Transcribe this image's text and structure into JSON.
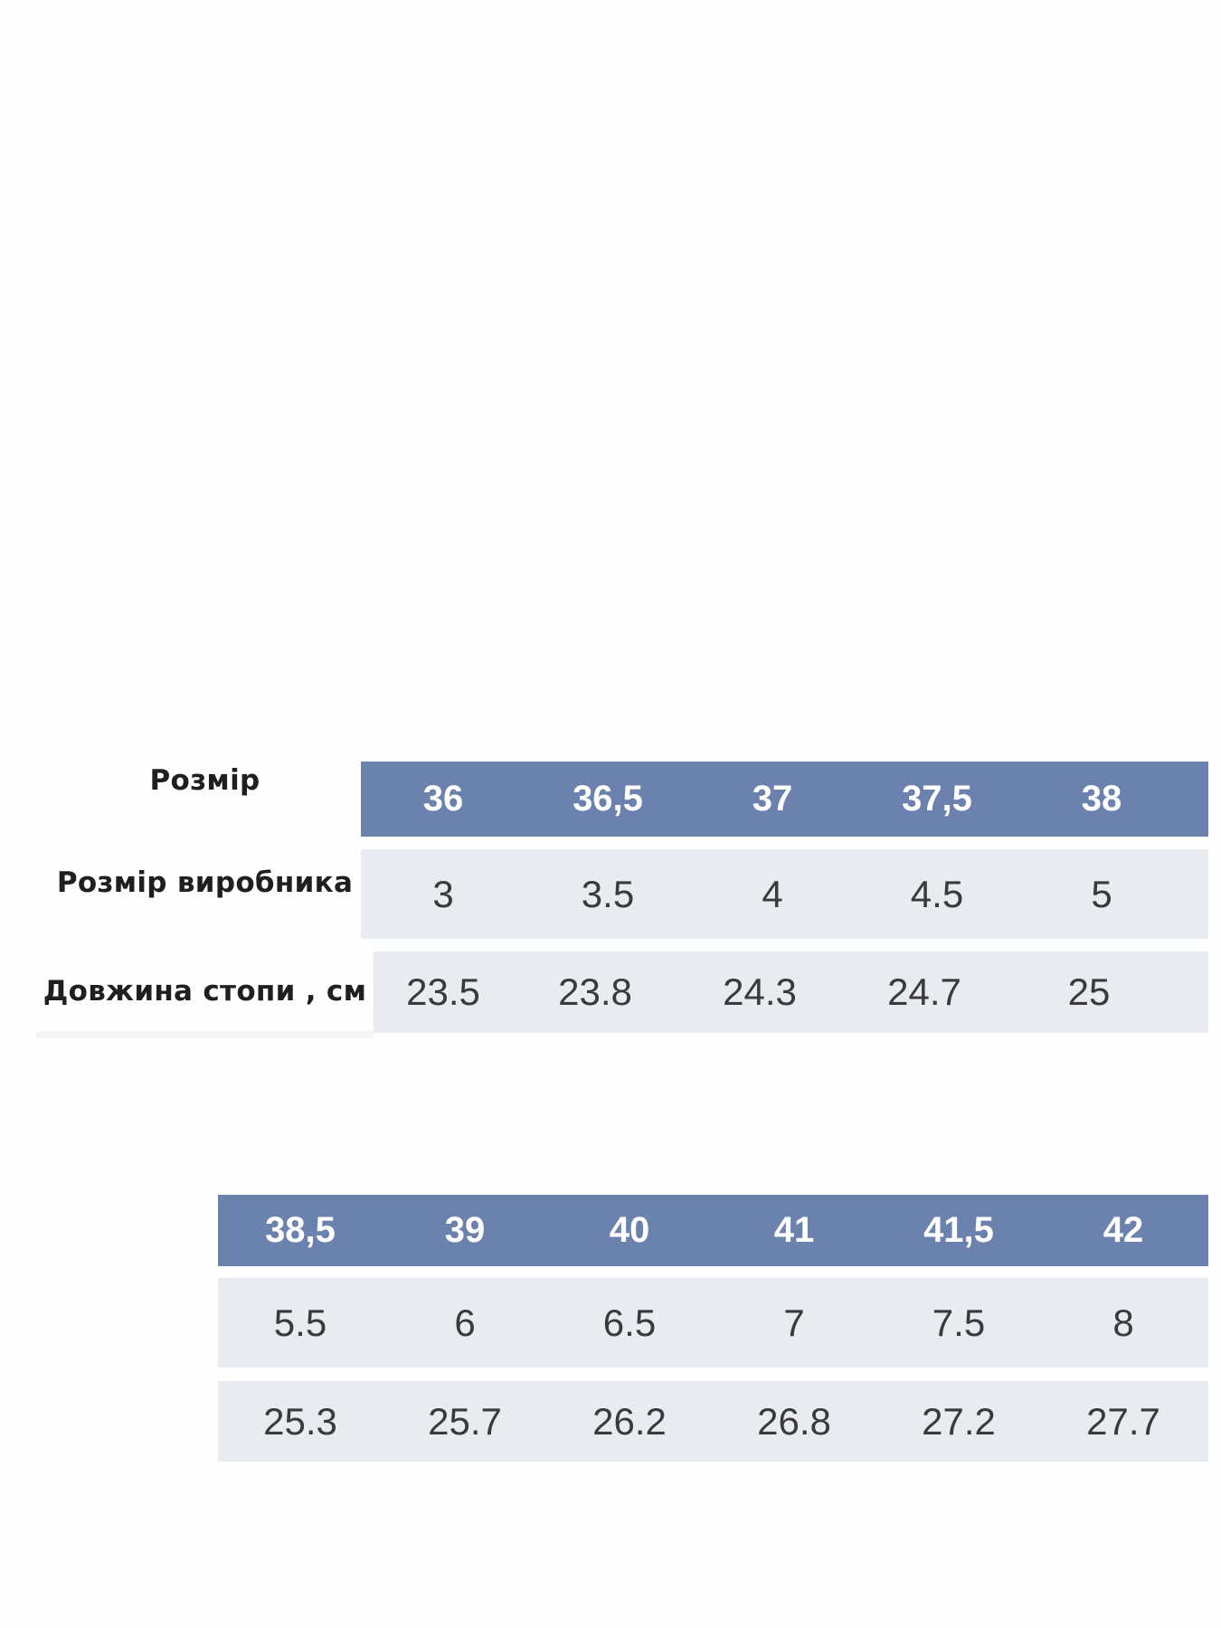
{
  "labels": {
    "size": "Розмір",
    "manufacturer_size": "Розмір виробника",
    "foot_length": "Довжина стопи , см"
  },
  "colors": {
    "header": "#6b82ae",
    "row": "#e8ebef"
  },
  "table1": {
    "sizes": [
      "36",
      "36,5",
      "37",
      "37,5",
      "38"
    ],
    "manufacturer": [
      "3",
      "3.5",
      "4",
      "4.5",
      "5"
    ],
    "foot_length": [
      "23.5",
      "23.8",
      "24.3",
      "24.7",
      "25"
    ]
  },
  "table2": {
    "sizes": [
      "38,5",
      "39",
      "40",
      "41",
      "41,5",
      "42"
    ],
    "manufacturer": [
      "5.5",
      "6",
      "6.5",
      "7",
      "7.5",
      "8"
    ],
    "foot_length": [
      "25.3",
      "25.7",
      "26.2",
      "26.8",
      "27.2",
      "27.7"
    ]
  }
}
